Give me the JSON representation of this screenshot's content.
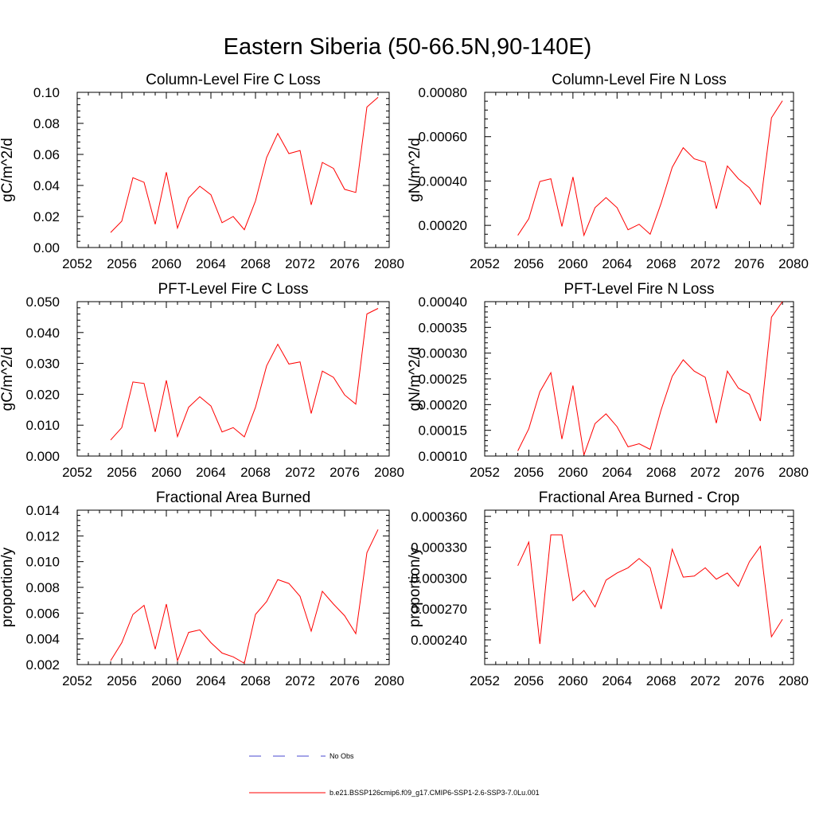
{
  "figure_title": "Eastern Siberia (50-66.5N,90-140E)",
  "legend": {
    "items": [
      {
        "label": "No Obs",
        "color": "#4a4ad0",
        "dash": "dashed"
      },
      {
        "label": "b.e21.BSSP126cmip6.f09_g17.CMIP6-SSP1-2.6-SSP3-7.0Lu.001",
        "color": "#ff0000",
        "dash": "solid"
      }
    ]
  },
  "chart_data": [
    {
      "type": "line",
      "title": "Column-Level Fire C Loss",
      "ylabel": "gC/m^2/d",
      "xlim": [
        2052,
        2080
      ],
      "ylim": [
        0,
        0.1
      ],
      "xticks": [
        2052,
        2056,
        2060,
        2064,
        2068,
        2072,
        2076,
        2080
      ],
      "yticks": [
        "0.00",
        "0.02",
        "0.04",
        "0.06",
        "0.08",
        "0.10"
      ],
      "ytick_values": [
        0,
        0.02,
        0.04,
        0.06,
        0.08,
        0.1
      ],
      "x": [
        2055,
        2056,
        2057,
        2058,
        2059,
        2060,
        2061,
        2062,
        2063,
        2064,
        2065,
        2066,
        2067,
        2068,
        2069,
        2070,
        2071,
        2072,
        2073,
        2074,
        2075,
        2076,
        2077,
        2078,
        2079
      ],
      "series": [
        {
          "color": "#ff0000",
          "values": [
            0.0097,
            0.017,
            0.045,
            0.042,
            0.015,
            0.0485,
            0.0125,
            0.032,
            0.0395,
            0.034,
            0.016,
            0.02,
            0.0115,
            0.03,
            0.058,
            0.0735,
            0.0605,
            0.0625,
            0.0275,
            0.0548,
            0.051,
            0.0375,
            0.0355,
            0.0905,
            0.0968
          ]
        }
      ]
    },
    {
      "type": "line",
      "title": "Column-Level Fire N Loss",
      "ylabel": "gN/m^2/d",
      "xlim": [
        2052,
        2080
      ],
      "ylim": [
        0.0001,
        0.0008
      ],
      "xticks": [
        2052,
        2056,
        2060,
        2064,
        2068,
        2072,
        2076,
        2080
      ],
      "yticks": [
        "0.00020",
        "0.00040",
        "0.00060",
        "0.00080"
      ],
      "ytick_values": [
        0.0002,
        0.0004,
        0.0006,
        0.0008
      ],
      "x": [
        2055,
        2056,
        2057,
        2058,
        2059,
        2060,
        2061,
        2062,
        2063,
        2064,
        2065,
        2066,
        2067,
        2068,
        2069,
        2070,
        2071,
        2072,
        2073,
        2074,
        2075,
        2076,
        2077,
        2078,
        2079
      ],
      "series": [
        {
          "color": "#ff0000",
          "values": [
            0.000155,
            0.00023,
            0.000398,
            0.00041,
            0.000195,
            0.000418,
            0.000155,
            0.00028,
            0.000325,
            0.00028,
            0.00018,
            0.000205,
            0.00016,
            0.0003,
            0.000462,
            0.00055,
            0.0005,
            0.000485,
            0.000275,
            0.000468,
            0.00041,
            0.00037,
            0.000295,
            0.000685,
            0.000762
          ]
        }
      ]
    },
    {
      "type": "line",
      "title": "PFT-Level Fire C Loss",
      "ylabel": "gC/m^2/d",
      "xlim": [
        2052,
        2080
      ],
      "ylim": [
        0,
        0.05
      ],
      "xticks": [
        2052,
        2056,
        2060,
        2064,
        2068,
        2072,
        2076,
        2080
      ],
      "yticks": [
        "0.000",
        "0.010",
        "0.020",
        "0.030",
        "0.040",
        "0.050"
      ],
      "ytick_values": [
        0,
        0.01,
        0.02,
        0.03,
        0.04,
        0.05
      ],
      "x": [
        2055,
        2056,
        2057,
        2058,
        2059,
        2060,
        2061,
        2062,
        2063,
        2064,
        2065,
        2066,
        2067,
        2068,
        2069,
        2070,
        2071,
        2072,
        2073,
        2074,
        2075,
        2076,
        2077,
        2078,
        2079
      ],
      "series": [
        {
          "color": "#ff0000",
          "values": [
            0.0052,
            0.0092,
            0.024,
            0.0235,
            0.0078,
            0.0245,
            0.0063,
            0.0158,
            0.0192,
            0.0162,
            0.0078,
            0.0092,
            0.0062,
            0.0158,
            0.0292,
            0.0362,
            0.0298,
            0.0305,
            0.0138,
            0.0275,
            0.0255,
            0.0198,
            0.0168,
            0.046,
            0.0478
          ]
        }
      ]
    },
    {
      "type": "line",
      "title": "PFT-Level Fire N Loss",
      "ylabel": "gN/m^2/d",
      "xlim": [
        2052,
        2080
      ],
      "ylim": [
        0.0001,
        0.0004
      ],
      "xticks": [
        2052,
        2056,
        2060,
        2064,
        2068,
        2072,
        2076,
        2080
      ],
      "yticks": [
        "0.00010",
        "0.00015",
        "0.00020",
        "0.00025",
        "0.00030",
        "0.00035",
        "0.00040"
      ],
      "ytick_values": [
        0.0001,
        0.00015,
        0.0002,
        0.00025,
        0.0003,
        0.00035,
        0.0004
      ],
      "x": [
        2055,
        2056,
        2057,
        2058,
        2059,
        2060,
        2061,
        2062,
        2063,
        2064,
        2065,
        2066,
        2067,
        2068,
        2069,
        2070,
        2071,
        2072,
        2073,
        2074,
        2075,
        2076,
        2077,
        2078,
        2079
      ],
      "series": [
        {
          "color": "#ff0000",
          "values": [
            0.00011,
            0.000153,
            0.000225,
            0.000262,
            0.000133,
            0.000237,
            0.000102,
            0.000163,
            0.000182,
            0.000157,
            0.000118,
            0.000124,
            0.000113,
            0.00019,
            0.000255,
            0.000287,
            0.000265,
            0.000253,
            0.000164,
            0.000265,
            0.000232,
            0.00022,
            0.000168,
            0.00037,
            0.0004
          ]
        }
      ]
    },
    {
      "type": "line",
      "title": "Fractional Area Burned",
      "ylabel": "proportion/y",
      "xlim": [
        2052,
        2080
      ],
      "ylim": [
        0.002,
        0.014
      ],
      "xticks": [
        2052,
        2056,
        2060,
        2064,
        2068,
        2072,
        2076,
        2080
      ],
      "yticks": [
        "0.002",
        "0.004",
        "0.006",
        "0.008",
        "0.010",
        "0.012",
        "0.014"
      ],
      "ytick_values": [
        0.002,
        0.004,
        0.006,
        0.008,
        0.01,
        0.012,
        0.014
      ],
      "x": [
        2055,
        2056,
        2057,
        2058,
        2059,
        2060,
        2061,
        2062,
        2063,
        2064,
        2065,
        2066,
        2067,
        2068,
        2069,
        2070,
        2071,
        2072,
        2073,
        2074,
        2075,
        2076,
        2077,
        2078,
        2079
      ],
      "series": [
        {
          "color": "#ff0000",
          "values": [
            0.0023,
            0.0037,
            0.0059,
            0.0066,
            0.0032,
            0.0067,
            0.0023,
            0.0045,
            0.0047,
            0.0037,
            0.0029,
            0.0026,
            0.0021,
            0.0059,
            0.0069,
            0.0086,
            0.0083,
            0.0073,
            0.0046,
            0.0077,
            0.0067,
            0.0058,
            0.0044,
            0.0107,
            0.0125
          ]
        }
      ]
    },
    {
      "type": "line",
      "title": "Fractional Area Burned - Crop",
      "ylabel": "proportion/y",
      "xlim": [
        2052,
        2080
      ],
      "ylim": [
        0.000216,
        0.000366
      ],
      "xticks": [
        2052,
        2056,
        2060,
        2064,
        2068,
        2072,
        2076,
        2080
      ],
      "yticks": [
        "0.000240",
        "0.000270",
        "0.000300",
        "0.000330",
        "0.000360"
      ],
      "ytick_values": [
        0.00024,
        0.00027,
        0.0003,
        0.00033,
        0.00036
      ],
      "x": [
        2055,
        2056,
        2057,
        2058,
        2059,
        2060,
        2061,
        2062,
        2063,
        2064,
        2065,
        2066,
        2067,
        2068,
        2069,
        2070,
        2071,
        2072,
        2073,
        2074,
        2075,
        2076,
        2077,
        2078,
        2079
      ],
      "series": [
        {
          "color": "#ff0000",
          "values": [
            0.000312,
            0.000335,
            0.000236,
            0.000342,
            0.000342,
            0.000278,
            0.000288,
            0.000272,
            0.000298,
            0.000305,
            0.00031,
            0.000319,
            0.00031,
            0.00027,
            0.000328,
            0.000301,
            0.000302,
            0.00031,
            0.000299,
            0.000305,
            0.000292,
            0.000316,
            0.000331,
            0.000243,
            0.00026
          ]
        }
      ]
    }
  ]
}
